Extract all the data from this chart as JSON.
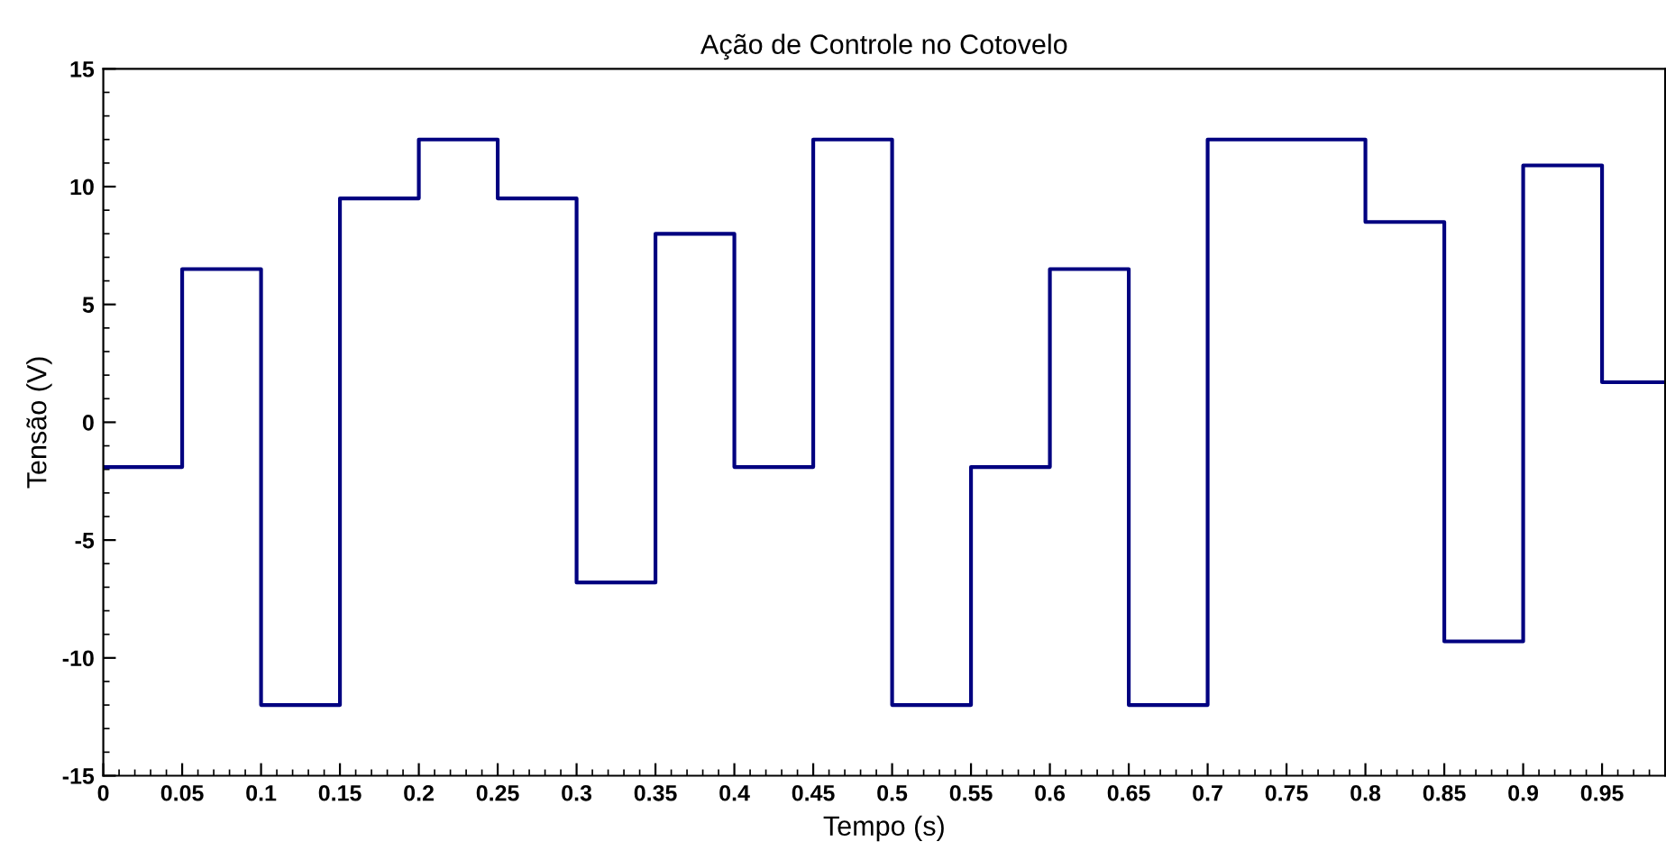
{
  "chart_data": {
    "type": "step",
    "title": "Ação de Controle no Cotovelo",
    "xlabel": "Tempo (s)",
    "ylabel": "Tensão (V)",
    "x": [
      0,
      0.05,
      0.1,
      0.15,
      0.2,
      0.25,
      0.3,
      0.35,
      0.4,
      0.45,
      0.5,
      0.55,
      0.6,
      0.65,
      0.7,
      0.75,
      0.8,
      0.85,
      0.9,
      0.95,
      0.99
    ],
    "series": [
      {
        "color": "#000080",
        "values": [
          -1.9,
          6.5,
          -12,
          9.5,
          12,
          9.5,
          -6.8,
          8,
          -1.9,
          12,
          -12,
          -1.9,
          6.5,
          -12,
          12,
          12,
          8.5,
          -9.3,
          10.9,
          1.7,
          1.7
        ]
      }
    ],
    "xlim": [
      0,
      0.99
    ],
    "ylim": [
      -15,
      15
    ],
    "xticks": [
      0,
      0.05,
      0.1,
      0.15,
      0.2,
      0.25,
      0.3,
      0.35,
      0.4,
      0.45,
      0.5,
      0.55,
      0.6,
      0.65,
      0.7,
      0.75,
      0.8,
      0.85,
      0.9,
      0.95
    ],
    "yticks": [
      -15,
      -10,
      -5,
      0,
      5,
      10,
      15
    ],
    "grid": false,
    "line_style": "solid",
    "marker": "none"
  }
}
